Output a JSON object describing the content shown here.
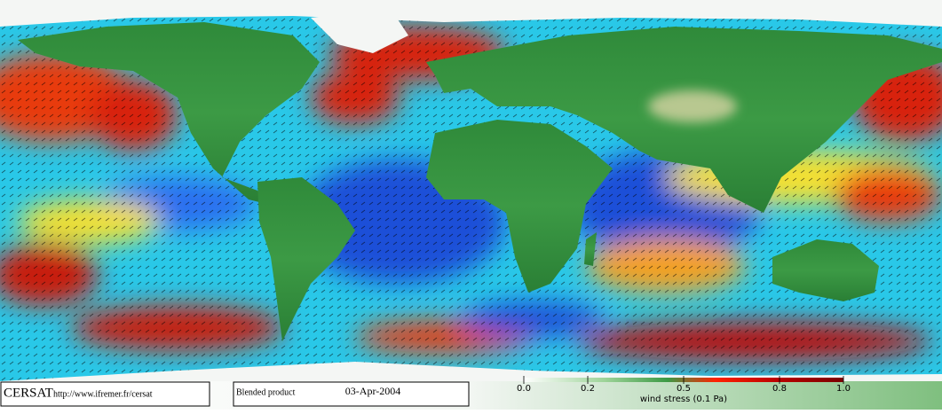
{
  "branding": {
    "logo": "CERSAT",
    "url": "http://www.ifremer.fr/cersat"
  },
  "product": {
    "name": "Blended product",
    "date": "03-Apr-2004"
  },
  "colorbar": {
    "label": "wind stress (0.1 Pa)",
    "lim": [
      0,
      1
    ],
    "ticks": [
      {
        "value": 0,
        "label": "0.0"
      },
      0.2,
      0.5,
      0.8,
      {
        "value": 1,
        "label": "1.0"
      }
    ]
  }
}
